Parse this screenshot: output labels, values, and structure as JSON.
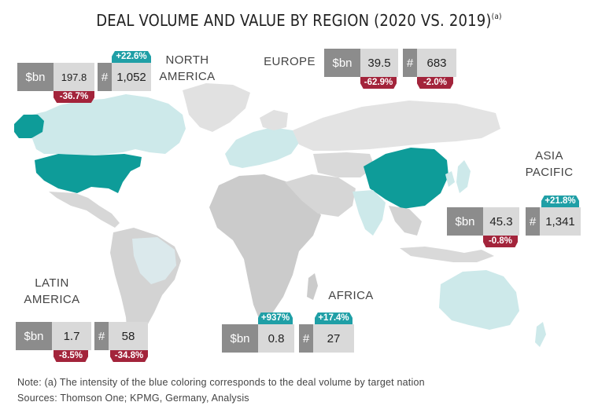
{
  "title": "DEAL VOLUME AND VALUE BY REGION (2020 VS. 2019)",
  "title_note": "(a)",
  "colors": {
    "teal_dark": "#0e9c99",
    "teal_light": "#cde9ea",
    "grey_land": "#cccccc",
    "badge_up": "#1f9fa6",
    "badge_down": "#a3243b"
  },
  "regions": {
    "north_america": {
      "label_line1": "NORTH",
      "label_line2": "AMERICA",
      "value_unit": "$bn",
      "value": "197.8",
      "value_change": "-36.7%",
      "count_unit": "#",
      "count": "1,052",
      "count_change": "+22.6%"
    },
    "europe": {
      "label": "EUROPE",
      "value_unit": "$bn",
      "value": "39.5",
      "value_change": "-62.9%",
      "count_unit": "#",
      "count": "683",
      "count_change": "-2.0%"
    },
    "asia_pacific": {
      "label_line1": "ASIA",
      "label_line2": "PACIFIC",
      "value_unit": "$bn",
      "value": "45.3",
      "value_change": "-0.8%",
      "count_unit": "#",
      "count": "1,341",
      "count_change": "+21.8%"
    },
    "latin_america": {
      "label_line1": "LATIN",
      "label_line2": "AMERICA",
      "value_unit": "$bn",
      "value": "1.7",
      "value_change": "-8.5%",
      "count_unit": "#",
      "count": "58",
      "count_change": "-34.8%"
    },
    "africa": {
      "label": "AFRICA",
      "value_unit": "$bn",
      "value": "0.8",
      "value_change": "+937%",
      "count_unit": "#",
      "count": "27",
      "count_change": "+17.4%"
    }
  },
  "footer": {
    "note": "Note: (a) The intensity of the blue coloring corresponds to the deal volume by target nation",
    "sources": "Sources: Thomson One; KPMG, Germany, Analysis"
  }
}
